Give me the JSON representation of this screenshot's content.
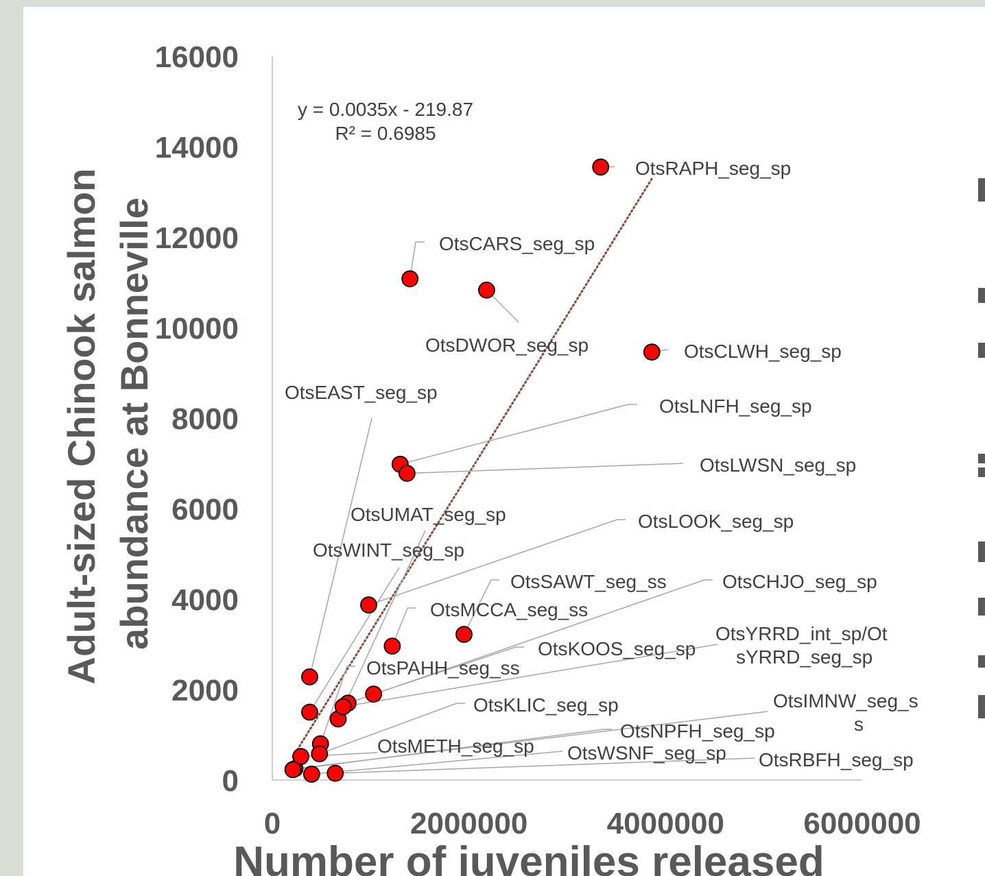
{
  "chart_data": {
    "type": "scatter",
    "xlabel": "Number of juveniles released",
    "ylabel_line1": "Adult-sized Chinook salmon",
    "ylabel_line2": "abundance at Bonneville",
    "xlim": [
      0,
      6000000
    ],
    "ylim": [
      0,
      16000
    ],
    "x_ticks": [
      "0",
      "2000000",
      "4000000",
      "6000000"
    ],
    "y_ticks": [
      "0",
      "2000",
      "4000",
      "6000",
      "8000",
      "10000",
      "12000",
      "14000",
      "16000"
    ],
    "grid": false,
    "marker_color": "#ff0000",
    "marker_edge_color": "#000000",
    "trendline": {
      "type": "linear",
      "style": "dotted",
      "color": "#8b4a3c",
      "slope": 0.0035,
      "intercept": -219.87,
      "equation_line1": "y = 0.0035x - 219.87",
      "equation_line2": "R² = 0.6985"
    },
    "points": [
      {
        "label": "OtsRAPH_seg_sp",
        "x": 3340000,
        "y": 13550
      },
      {
        "label": "OtsCARS_seg_sp",
        "x": 1400000,
        "y": 11080
      },
      {
        "label": "OtsDWOR_seg_sp",
        "x": 2180000,
        "y": 10830
      },
      {
        "label": "OtsCLWH_seg_sp",
        "x": 3860000,
        "y": 9460
      },
      {
        "label": "OtsLNFH_seg_sp",
        "x": 1300000,
        "y": 6980
      },
      {
        "label": "OtsLWSN_seg_sp",
        "x": 1370000,
        "y": 6780
      },
      {
        "label": "OtsEAST_seg_sp",
        "x": 380000,
        "y": 2280
      },
      {
        "label": "OtsUMAT_seg_sp",
        "x": 670000,
        "y": 1350
      },
      {
        "label": "OtsWINT_seg_sp",
        "x": 380000,
        "y": 1500
      },
      {
        "label": "OtsLOOK_seg_sp",
        "x": 980000,
        "y": 3870
      },
      {
        "label": "OtsSAWT_seg_ss",
        "x": 1950000,
        "y": 3220
      },
      {
        "label": "OtsMCCA_seg_ss",
        "x": 1220000,
        "y": 2960
      },
      {
        "label": "OtsCHJO_seg_sp",
        "x": 770000,
        "y": 1700
      },
      {
        "label": "OtsKOOS_seg_sp",
        "x": 1030000,
        "y": 1900
      },
      {
        "label": "OtsYRRD_int_sp/OtsYRRD_seg_sp",
        "x": 720000,
        "y": 1620
      },
      {
        "label": "OtsPAHH_seg_ss",
        "x": 490000,
        "y": 800
      },
      {
        "label": "OtsKLIC_seg_sp",
        "x": 480000,
        "y": 580
      },
      {
        "label": "OtsIMNW_seg_ss",
        "x": 230000,
        "y": 250
      },
      {
        "label": "OtsMETH_seg_sp",
        "x": 290000,
        "y": 520
      },
      {
        "label": "OtsNPFH_seg_sp",
        "x": 210000,
        "y": 230
      },
      {
        "label": "OtsWSNF_seg_sp",
        "x": 400000,
        "y": 130
      },
      {
        "label": "OtsRBFH_seg_sp",
        "x": 640000,
        "y": 150
      }
    ]
  }
}
